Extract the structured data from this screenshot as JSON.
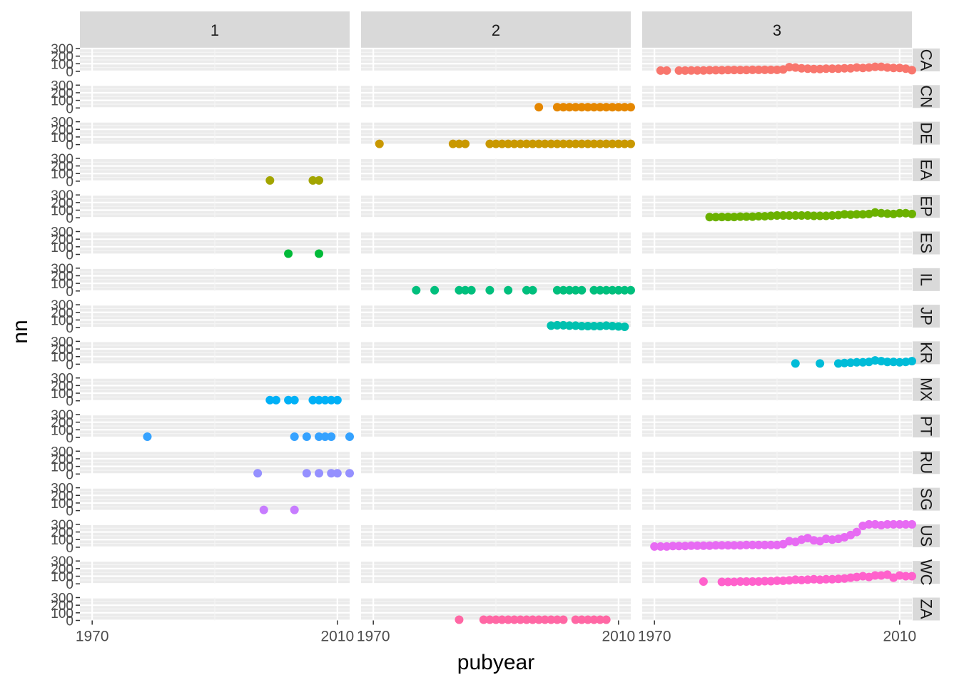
{
  "chart_data": {
    "type": "scatter",
    "xlabel": "pubyear",
    "ylabel": "nn",
    "xlim": [
      1968,
      2012
    ],
    "ylim": [
      0,
      300
    ],
    "x_ticks": [
      1970,
      2010
    ],
    "x_tick_labels": [
      "1970",
      "2010"
    ],
    "y_ticks": [
      0,
      100,
      200,
      300
    ],
    "y_tick_labels": [
      "0",
      "100",
      "200",
      "300"
    ],
    "column_facets": [
      "1",
      "2",
      "3"
    ],
    "row_facets": [
      "CA",
      "CN",
      "DE",
      "EA",
      "EP",
      "ES",
      "IL",
      "JP",
      "KR",
      "MX",
      "PT",
      "RU",
      "SG",
      "US",
      "WC",
      "ZA"
    ],
    "grid": true,
    "series": [
      {
        "row": "CA",
        "col": "3",
        "color": "#F8766D",
        "x": [
          1971,
          1972,
          1974,
          1975,
          1976,
          1977,
          1978,
          1979,
          1980,
          1981,
          1982,
          1983,
          1984,
          1985,
          1986,
          1987,
          1988,
          1989,
          1990,
          1991,
          1992,
          1993,
          1994,
          1995,
          1996,
          1997,
          1998,
          1999,
          2000,
          2001,
          2002,
          2003,
          2004,
          2005,
          2006,
          2007,
          2008,
          2009,
          2010,
          2011,
          2012
        ],
        "y": [
          10,
          10,
          10,
          10,
          12,
          12,
          12,
          15,
          15,
          15,
          18,
          18,
          18,
          18,
          20,
          20,
          20,
          20,
          20,
          25,
          55,
          50,
          40,
          35,
          30,
          30,
          35,
          35,
          35,
          40,
          40,
          50,
          45,
          50,
          60,
          60,
          50,
          45,
          45,
          35,
          15
        ]
      },
      {
        "row": "CN",
        "col": "2",
        "color": "#E58700",
        "x": [
          1997,
          2000,
          2001,
          2002,
          2003,
          2004,
          2005,
          2006,
          2007,
          2008,
          2009,
          2010,
          2011,
          2012
        ],
        "y": [
          5,
          5,
          5,
          5,
          5,
          5,
          5,
          5,
          5,
          5,
          5,
          5,
          5,
          5
        ]
      },
      {
        "row": "DE",
        "col": "2",
        "color": "#C99800",
        "x": [
          1971,
          1983,
          1984,
          1985,
          1989,
          1990,
          1991,
          1992,
          1993,
          1994,
          1995,
          1996,
          1997,
          1998,
          1999,
          2000,
          2001,
          2002,
          2003,
          2004,
          2005,
          2006,
          2007,
          2008,
          2009,
          2010,
          2011,
          2012
        ],
        "y": [
          5,
          5,
          5,
          5,
          5,
          5,
          5,
          5,
          5,
          5,
          5,
          5,
          5,
          5,
          5,
          5,
          5,
          5,
          5,
          5,
          5,
          5,
          5,
          5,
          5,
          5,
          5,
          5
        ]
      },
      {
        "row": "EA",
        "col": "1",
        "color": "#A3A500",
        "x": [
          1999,
          2006,
          2007
        ],
        "y": [
          5,
          5,
          5
        ]
      },
      {
        "row": "EP",
        "col": "3",
        "color": "#6BB100",
        "x": [
          1979,
          1980,
          1981,
          1982,
          1983,
          1984,
          1985,
          1986,
          1987,
          1988,
          1989,
          1990,
          1991,
          1992,
          1993,
          1994,
          1995,
          1996,
          1997,
          1998,
          1999,
          2000,
          2001,
          2002,
          2003,
          2004,
          2005,
          2006,
          2007,
          2008,
          2009,
          2010,
          2011,
          2012
        ],
        "y": [
          5,
          5,
          10,
          10,
          10,
          15,
          15,
          15,
          20,
          20,
          25,
          30,
          30,
          30,
          30,
          30,
          30,
          25,
          25,
          25,
          30,
          35,
          45,
          40,
          45,
          45,
          50,
          70,
          60,
          55,
          50,
          60,
          60,
          50
        ]
      },
      {
        "row": "ES",
        "col": "1",
        "color": "#00BA38",
        "x": [
          2002,
          2007
        ],
        "y": [
          5,
          5
        ]
      },
      {
        "row": "IL",
        "col": "2",
        "color": "#00BF7D",
        "x": [
          1977,
          1980,
          1984,
          1985,
          1986,
          1989,
          1992,
          1995,
          1996,
          2000,
          2001,
          2002,
          2003,
          2004,
          2006,
          2007,
          2008,
          2009,
          2010,
          2011,
          2012
        ],
        "y": [
          5,
          5,
          5,
          5,
          5,
          5,
          5,
          5,
          5,
          5,
          5,
          5,
          5,
          5,
          5,
          5,
          5,
          5,
          5,
          5,
          5
        ]
      },
      {
        "row": "JP",
        "col": "2",
        "color": "#00C0AF",
        "x": [
          1999,
          2000,
          2001,
          2002,
          2003,
          2004,
          2005,
          2006,
          2007,
          2008,
          2009,
          2010,
          2011
        ],
        "y": [
          25,
          30,
          30,
          25,
          25,
          20,
          20,
          20,
          20,
          25,
          20,
          15,
          10
        ]
      },
      {
        "row": "KR",
        "col": "3",
        "color": "#00BCD8",
        "x": [
          1993,
          1997,
          2000,
          2001,
          2002,
          2003,
          2004,
          2005,
          2006,
          2007,
          2008,
          2009,
          2010,
          2011,
          2012
        ],
        "y": [
          5,
          5,
          10,
          15,
          20,
          25,
          25,
          30,
          50,
          40,
          30,
          30,
          25,
          30,
          40
        ]
      },
      {
        "row": "MX",
        "col": "1",
        "color": "#00B0F6",
        "x": [
          1999,
          2000,
          2002,
          2003,
          2006,
          2007,
          2008,
          2009,
          2010
        ],
        "y": [
          5,
          5,
          5,
          5,
          5,
          5,
          5,
          5,
          5
        ]
      },
      {
        "row": "PT",
        "col": "1",
        "color": "#35A2FF",
        "x": [
          1979,
          2003,
          2005,
          2007,
          2008,
          2009,
          2012
        ],
        "y": [
          5,
          5,
          5,
          5,
          5,
          5,
          5
        ]
      },
      {
        "row": "RU",
        "col": "1",
        "color": "#9590FF",
        "x": [
          1997,
          2005,
          2007,
          2009,
          2010,
          2012
        ],
        "y": [
          5,
          5,
          5,
          5,
          5,
          5
        ]
      },
      {
        "row": "SG",
        "col": "1",
        "color": "#C77CFF",
        "x": [
          1998,
          2003
        ],
        "y": [
          5,
          5
        ]
      },
      {
        "row": "US",
        "col": "3",
        "color": "#E76BF3",
        "x": [
          1970,
          1971,
          1972,
          1973,
          1974,
          1975,
          1976,
          1977,
          1978,
          1979,
          1980,
          1981,
          1982,
          1983,
          1984,
          1985,
          1986,
          1987,
          1988,
          1989,
          1990,
          1991,
          1992,
          1993,
          1994,
          1995,
          1996,
          1997,
          1998,
          1999,
          2000,
          2001,
          2002,
          2003,
          2004,
          2005,
          2006,
          2007,
          2008,
          2009,
          2010,
          2011,
          2012
        ],
        "y": [
          10,
          10,
          10,
          15,
          15,
          15,
          20,
          20,
          20,
          20,
          25,
          25,
          25,
          25,
          25,
          30,
          30,
          30,
          30,
          30,
          30,
          40,
          80,
          70,
          100,
          120,
          90,
          80,
          110,
          100,
          110,
          130,
          160,
          200,
          280,
          300,
          300,
          290,
          300,
          300,
          300,
          300,
          300
        ]
      },
      {
        "row": "WC",
        "col": "3",
        "color": "#FF61CC",
        "x": [
          1978,
          1981,
          1982,
          1983,
          1984,
          1985,
          1986,
          1987,
          1988,
          1989,
          1990,
          1991,
          1992,
          1993,
          1994,
          1995,
          1996,
          1997,
          1998,
          1999,
          2000,
          2001,
          2002,
          2003,
          2004,
          2005,
          2006,
          2007,
          2008,
          2009,
          2010,
          2011,
          2012
        ],
        "y": [
          30,
          25,
          25,
          25,
          30,
          30,
          30,
          30,
          35,
          35,
          40,
          40,
          45,
          55,
          50,
          55,
          60,
          55,
          60,
          60,
          65,
          70,
          80,
          90,
          100,
          90,
          110,
          110,
          120,
          80,
          110,
          100,
          100
        ]
      },
      {
        "row": "ZA",
        "col": "2",
        "color": "#FF67A4",
        "x": [
          1984,
          1988,
          1989,
          1990,
          1991,
          1992,
          1993,
          1994,
          1995,
          1996,
          1997,
          1998,
          1999,
          2000,
          2001,
          2003,
          2004,
          2005,
          2006,
          2007,
          2008
        ],
        "y": [
          5,
          5,
          5,
          5,
          5,
          5,
          5,
          5,
          5,
          5,
          5,
          5,
          5,
          5,
          5,
          5,
          5,
          5,
          5,
          5,
          5
        ]
      }
    ]
  }
}
